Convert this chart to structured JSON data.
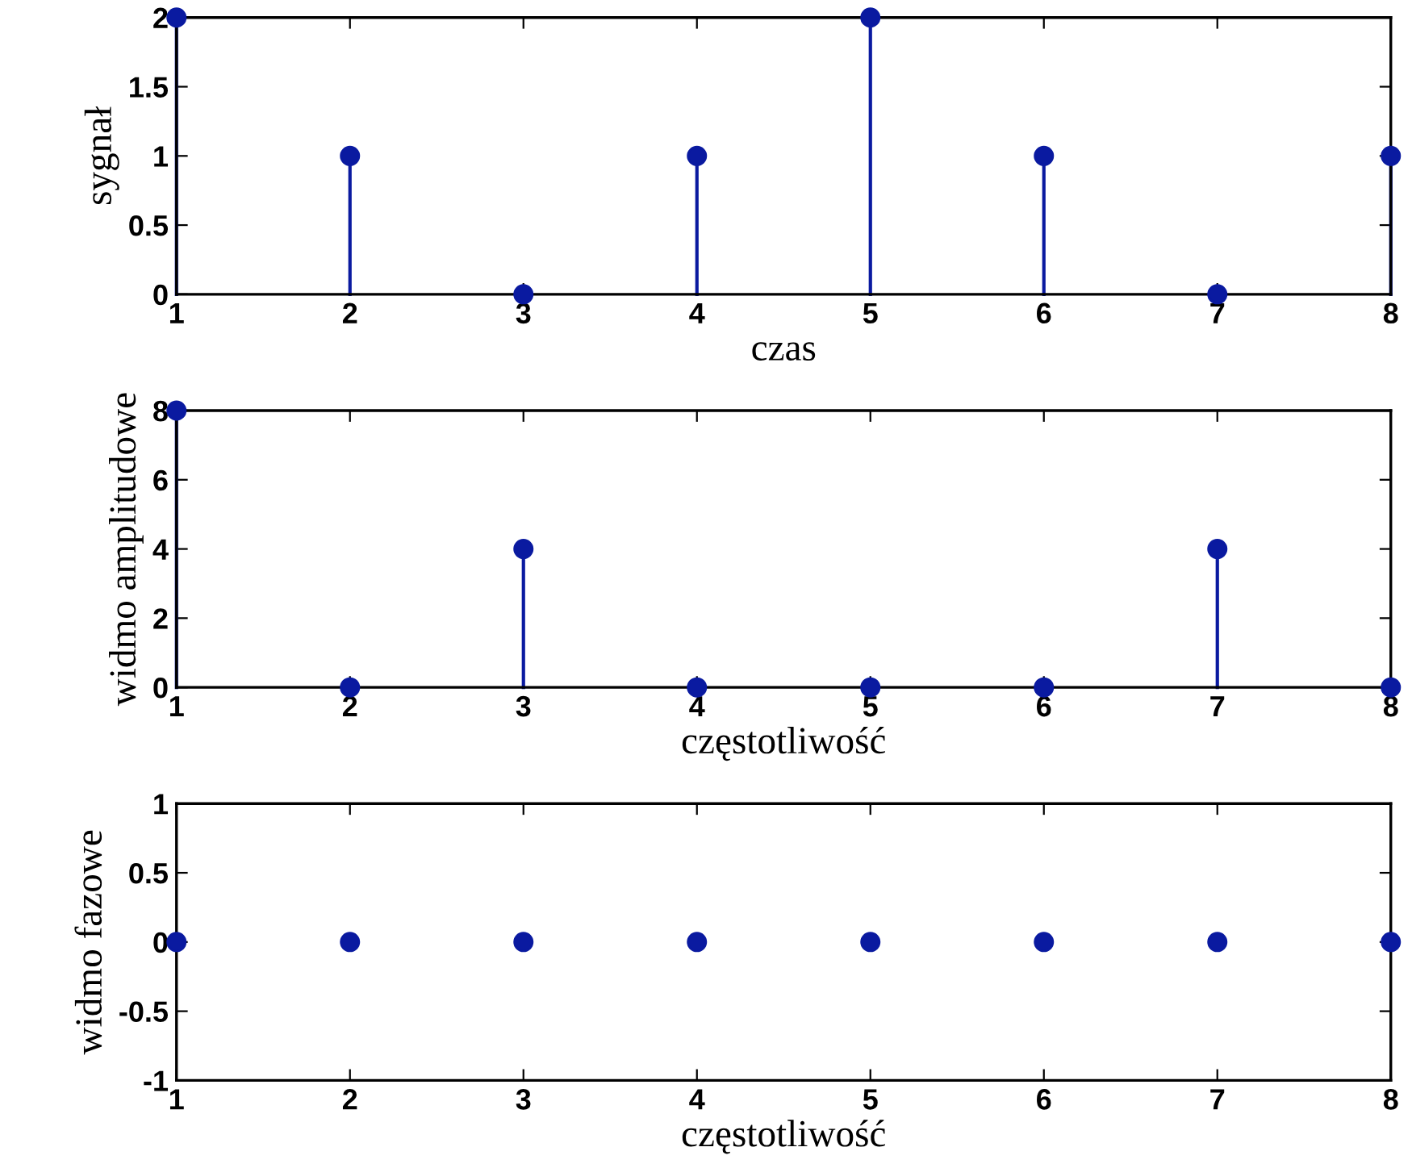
{
  "chart_data": [
    {
      "type": "lollipop",
      "x": [
        1,
        2,
        3,
        4,
        5,
        6,
        7,
        8
      ],
      "values": [
        2,
        1,
        0,
        1,
        2,
        1,
        0,
        1
      ],
      "color": "#0a1aa0",
      "marker": "circle",
      "xlabel": "czas",
      "ylabel": "sygnał",
      "xlim": [
        1,
        8
      ],
      "xticks": [
        1,
        2,
        3,
        4,
        5,
        6,
        7,
        8
      ],
      "ylim": [
        0,
        2
      ],
      "yticks": [
        0,
        0.5,
        1,
        1.5,
        2
      ],
      "grid": false
    },
    {
      "type": "lollipop",
      "x": [
        1,
        2,
        3,
        4,
        5,
        6,
        7,
        8
      ],
      "values": [
        8,
        0,
        4,
        0,
        0,
        0,
        4,
        0
      ],
      "color": "#0a1aa0",
      "marker": "circle",
      "xlabel": "częstotliwość",
      "ylabel": "widmo amplitudowe",
      "xlim": [
        1,
        8
      ],
      "xticks": [
        1,
        2,
        3,
        4,
        5,
        6,
        7,
        8
      ],
      "ylim": [
        0,
        8
      ],
      "yticks": [
        0,
        2,
        4,
        6,
        8
      ],
      "grid": false
    },
    {
      "type": "lollipop",
      "x": [
        1,
        2,
        3,
        4,
        5,
        6,
        7,
        8
      ],
      "values": [
        0,
        0,
        0,
        0,
        0,
        0,
        0,
        0
      ],
      "color": "#0a1aa0",
      "marker": "circle",
      "xlabel": "częstotliwość",
      "ylabel": "widmo fazowe",
      "xlim": [
        1,
        8
      ],
      "xticks": [
        1,
        2,
        3,
        4,
        5,
        6,
        7,
        8
      ],
      "ylim": [
        -1,
        1
      ],
      "yticks": [
        -1,
        -0.5,
        0,
        0.5,
        1
      ],
      "grid": false
    }
  ]
}
